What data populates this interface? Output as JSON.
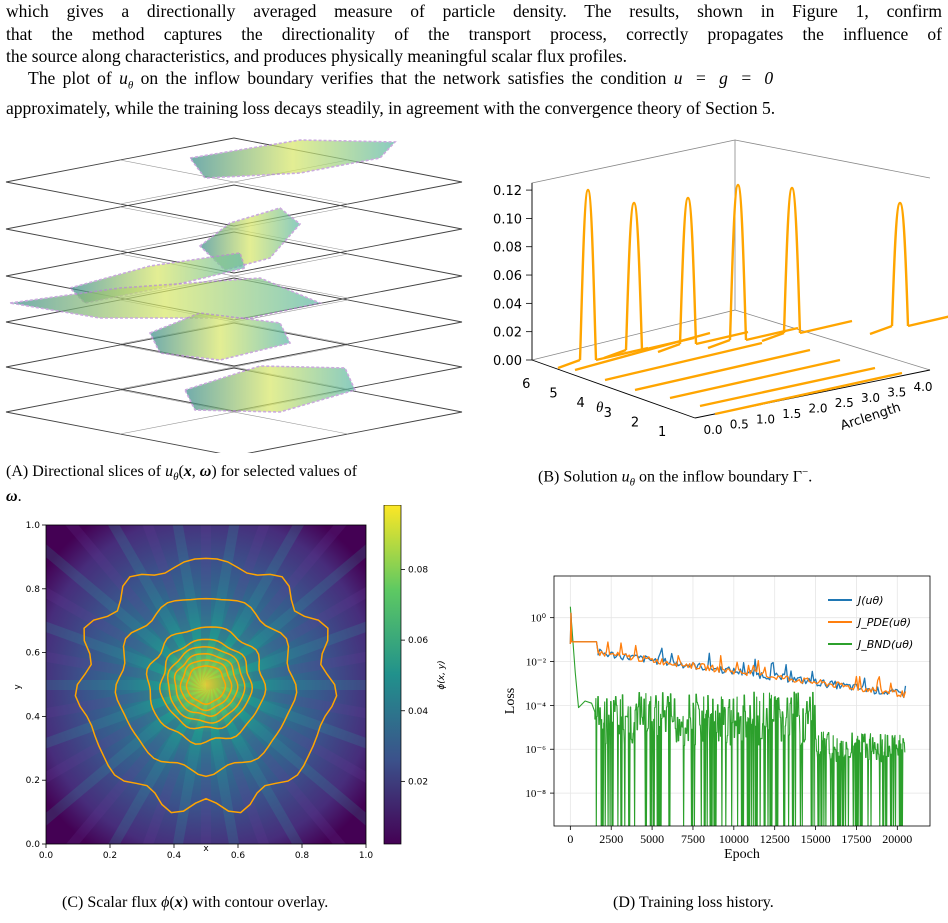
{
  "text": {
    "para1_l1": "which gives a directionally averaged measure of particle density.  The results, shown in Figure 1, confirm",
    "para1_l2": "that the method captures the directionality of the transport process, correctly propagates the influence of",
    "para1_l3": "the source along characteristics, and produces physically meaningful scalar flux profiles.",
    "para2_l1a": "The plot of ",
    "para2_l1b": "u",
    "para2_l1c": "θ",
    "para2_l1d": " on the inflow boundary verifies that the network satisfies the condition ",
    "para2_l1e": "u = g = 0",
    "para2_l2": "approximately, while the training loss decays steadily, in agreement with the convergence theory of Section 5."
  },
  "captions": {
    "a_tag": "(A)",
    "a_text": "Directional slices of uθ(x, ω) for selected values of",
    "a_text2": "ω.",
    "b_tag": "(B)",
    "b_text": "Solution uθ on the inflow boundary Γ⁻.",
    "c_tag": "(C)",
    "c_text": "Scalar flux ϕ(x) with contour overlay.",
    "d_tag": "(D)",
    "d_text": "Training loss history."
  },
  "chart_data": [
    {
      "type": "line",
      "panel": "B",
      "title": "",
      "xlabel": "θ",
      "ylabel": "",
      "zlabel": "Arclength",
      "theta_ticks": [
        "1",
        "2",
        "3",
        "4",
        "5",
        "6"
      ],
      "arclength_ticks": [
        "0.0",
        "0.5",
        "1.0",
        "1.5",
        "2.0",
        "2.5",
        "3.0",
        "3.5",
        "4.0"
      ],
      "value_ticks": [
        "0.00",
        "0.02",
        "0.04",
        "0.06",
        "0.08",
        "0.10",
        "0.12"
      ],
      "peak_value": 0.12,
      "series_color": "#ffa500"
    },
    {
      "type": "heatmap",
      "panel": "C",
      "xlabel": "x",
      "ylabel": "y",
      "colorbar_label": "ϕ(x, y)",
      "x_ticks": [
        "0.0",
        "0.2",
        "0.4",
        "0.6",
        "0.8",
        "1.0"
      ],
      "y_ticks": [
        "0.0",
        "0.2",
        "0.4",
        "0.6",
        "0.8",
        "1.0"
      ],
      "colorbar_ticks": [
        "0.02",
        "0.04",
        "0.06",
        "0.08"
      ],
      "peak": [
        0.5,
        0.5
      ],
      "contour_color": "#ffa500"
    },
    {
      "type": "line",
      "panel": "D",
      "xlabel": "Epoch",
      "ylabel": "Loss",
      "yscale": "log",
      "x_ticks": [
        "0",
        "2500",
        "5000",
        "7500",
        "10000",
        "12500",
        "15000",
        "17500",
        "20000"
      ],
      "y_ticks": [
        "10⁰",
        "10⁻²",
        "10⁻⁴",
        "10⁻⁶",
        "10⁻⁸"
      ],
      "legend_position": "top-right",
      "series": [
        {
          "name": "J(uθ)",
          "color": "#1f77b4"
        },
        {
          "name": "J_PDE(uθ)",
          "color": "#ff7f0e"
        },
        {
          "name": "J_BND(uθ)",
          "color": "#2ca02c"
        }
      ]
    }
  ]
}
